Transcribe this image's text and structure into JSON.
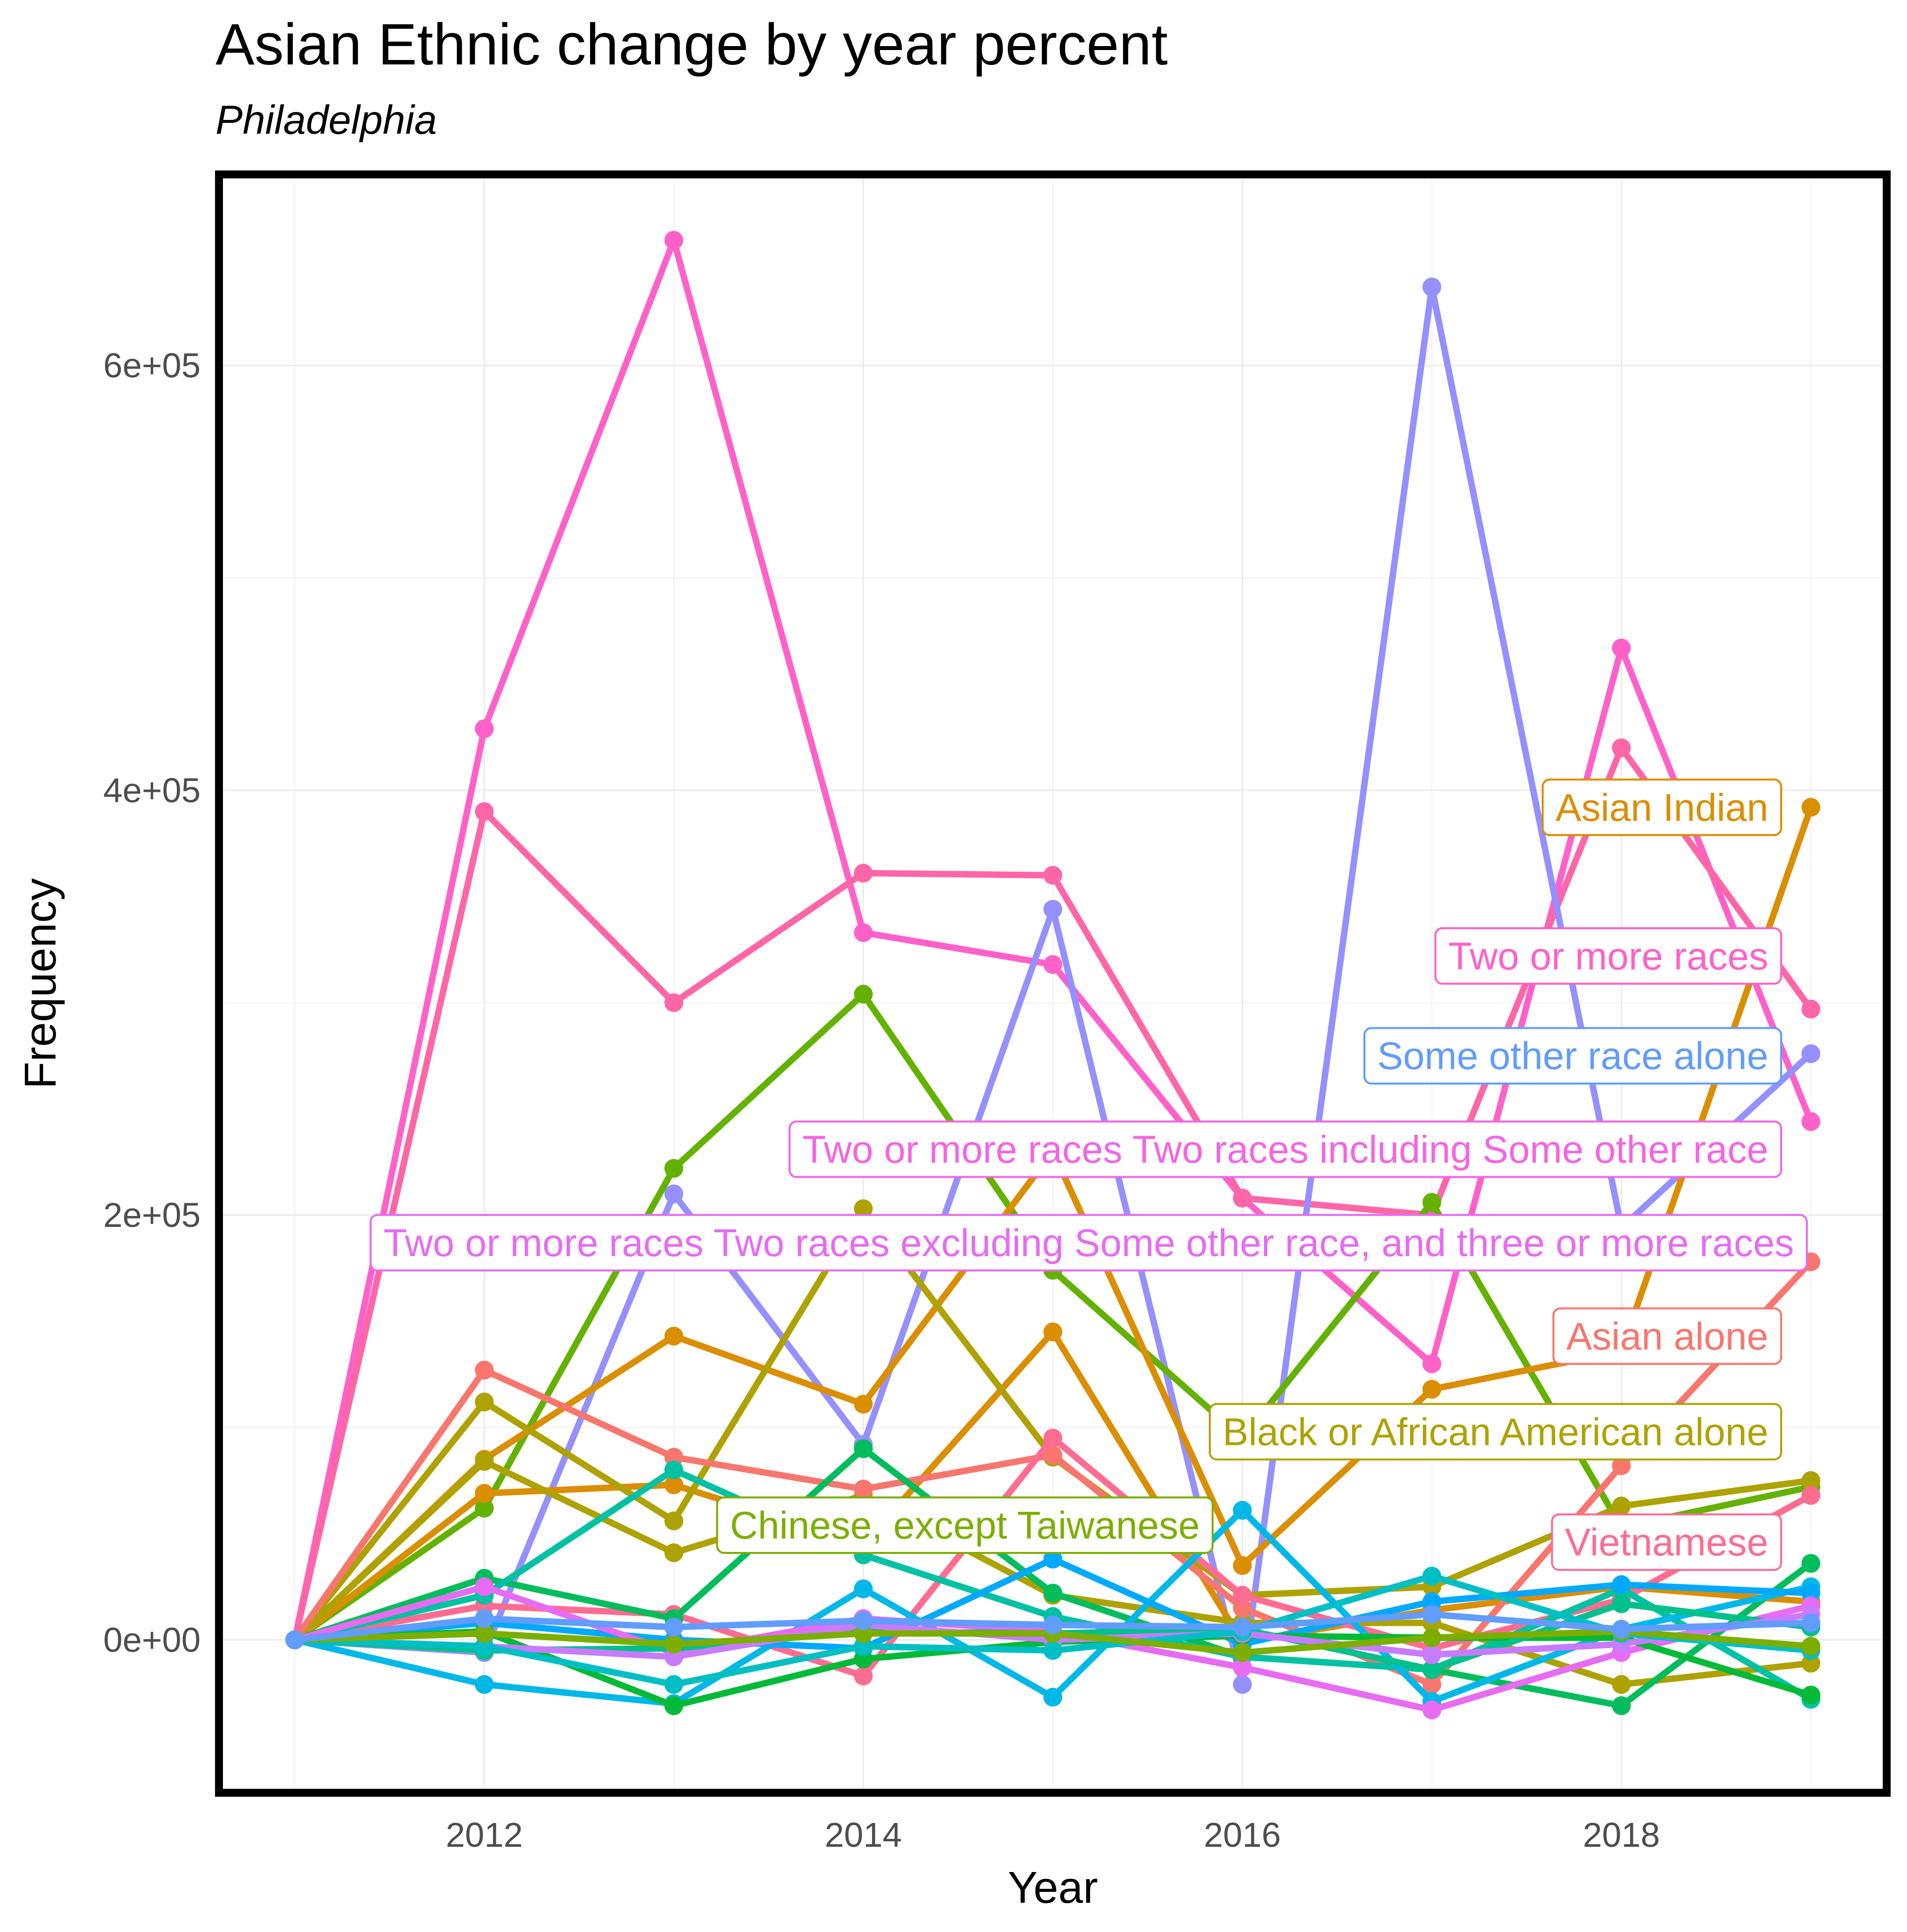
{
  "chart_data": {
    "type": "line",
    "title": "Asian Ethnic change by year percent",
    "subtitle": "Philadelphia",
    "xlabel": "Year",
    "ylabel": "Frequency",
    "xlim": [
      2010.6,
      2019.4
    ],
    "ylim": [
      -72000,
      690000
    ],
    "x_ticks": [
      2012,
      2014,
      2016,
      2018
    ],
    "x_tick_labels": [
      "2012",
      "2014",
      "2016",
      "2018"
    ],
    "y_ticks": [
      0,
      200000,
      400000,
      600000
    ],
    "y_tick_labels": [
      "0e+00",
      "2e+05",
      "4e+05",
      "6e+05"
    ],
    "grid": true,
    "legend": "none",
    "x": [
      2011,
      2012,
      2013,
      2014,
      2015,
      2016,
      2017,
      2018,
      2019
    ],
    "series": [
      {
        "color": "#FF61C9",
        "values": [
          0,
          429000,
          659000,
          333000,
          318000,
          208000,
          130000,
          467000,
          244000
        ]
      },
      {
        "color": "#FF66A8",
        "values": [
          0,
          390000,
          300000,
          361000,
          360000,
          208000,
          200000,
          420000,
          297000
        ]
      },
      {
        "color": "#9590FF",
        "values": [
          0,
          -6000,
          210000,
          92000,
          344000,
          -21000,
          637000,
          194000,
          276000
        ]
      },
      {
        "color": "#64B200",
        "values": [
          0,
          62000,
          222000,
          304000,
          174000,
          95000,
          206000,
          53000,
          72000
        ]
      },
      {
        "color": "#DB8E00",
        "values": [
          0,
          85000,
          143000,
          111000,
          230000,
          35000,
          118000,
          136000,
          392000
        ]
      },
      {
        "color": "#DB8E00",
        "values": [
          0,
          69000,
          73000,
          45000,
          145000,
          -1000,
          14000,
          25000,
          18000
        ]
      },
      {
        "color": "#AEA200",
        "values": [
          0,
          112000,
          56000,
          203000,
          86000,
          21000,
          25000,
          63000,
          75000
        ]
      },
      {
        "color": "#AEA200",
        "values": [
          0,
          84000,
          41000,
          68000,
          21000,
          8000,
          8000,
          -21000,
          -11000
        ]
      },
      {
        "color": "#F8766D",
        "values": [
          0,
          127000,
          86000,
          71000,
          87000,
          15000,
          -21000,
          82000,
          178000
        ]
      },
      {
        "color": "#FF6C91",
        "values": [
          0,
          16000,
          12000,
          -17000,
          95000,
          21000,
          -4000,
          19000,
          68000
        ]
      },
      {
        "color": "#00BD5C",
        "values": [
          0,
          29000,
          10000,
          90000,
          22000,
          -8000,
          -14000,
          -31000,
          36000
        ]
      },
      {
        "color": "#00C1A3",
        "values": [
          0,
          21000,
          80000,
          40000,
          11000,
          -8000,
          -14000,
          24000,
          -28000
        ]
      },
      {
        "color": "#00B8E7",
        "values": [
          0,
          -21000,
          -30000,
          24000,
          -27000,
          61000,
          -29000,
          5000,
          25000
        ]
      },
      {
        "color": "#00A9FF",
        "values": [
          0,
          8000,
          0,
          -4000,
          38000,
          -2000,
          18000,
          26000,
          22000
        ]
      },
      {
        "color": "#E76BF3",
        "values": [
          0,
          25000,
          -6000,
          10000,
          4000,
          -13000,
          -33000,
          -6000,
          16000
        ]
      },
      {
        "color": "#00BA38",
        "values": [
          0,
          4000,
          -31000,
          -9000,
          -1000,
          2000,
          1000,
          1000,
          -26000
        ]
      },
      {
        "color": "#00C08B",
        "values": [
          0,
          -5000,
          -4000,
          4000,
          3000,
          5000,
          -14000,
          17000,
          6000
        ]
      },
      {
        "color": "#C77CFF",
        "values": [
          0,
          -3000,
          -8000,
          7000,
          0,
          3000,
          -7000,
          -2000,
          12000
        ]
      },
      {
        "color": "#00BFC4",
        "values": [
          0,
          -3000,
          -21000,
          -3000,
          -5000,
          4000,
          30000,
          3000,
          -5000
        ]
      },
      {
        "color": "#7CAE00",
        "values": [
          0,
          3000,
          -2000,
          3000,
          3000,
          -6000,
          1000,
          4000,
          -3000
        ]
      },
      {
        "color": "#619CFF",
        "values": [
          0,
          10000,
          6000,
          9000,
          7000,
          6000,
          12000,
          5000,
          8000
        ]
      }
    ],
    "annotations": [
      {
        "text": "Asian Indian",
        "color": "#DB8E00",
        "x": 2019,
        "y": 392000,
        "anchor": "end"
      },
      {
        "text": "Two or more races",
        "color": "#FF61C9",
        "x": 2019,
        "y": 322000,
        "anchor": "end"
      },
      {
        "text": "Some other race alone",
        "color": "#619CFF",
        "x": 2019,
        "y": 275000,
        "anchor": "end"
      },
      {
        "text": "Two or more races Two races including Some other race",
        "color": "#F564E3",
        "x": 2019,
        "y": 231000,
        "anchor": "end"
      },
      {
        "text": "Two or more races Two races excluding Some other race, and three or more races",
        "color": "#E76BF3",
        "x": 2011.4,
        "y": 187000,
        "anchor": "start"
      },
      {
        "text": "Asian alone",
        "color": "#F8766D",
        "x": 2019,
        "y": 143000,
        "anchor": "end"
      },
      {
        "text": "Black or African American alone",
        "color": "#AEA200",
        "x": 2019,
        "y": 98000,
        "anchor": "end"
      },
      {
        "text": "Chinese, except Taiwanese",
        "color": "#7CAE00",
        "x": 2016,
        "y": 54000,
        "anchor": "end"
      },
      {
        "text": "Vietnamese",
        "color": "#FF6C91",
        "x": 2019,
        "y": 46000,
        "anchor": "end"
      }
    ]
  }
}
